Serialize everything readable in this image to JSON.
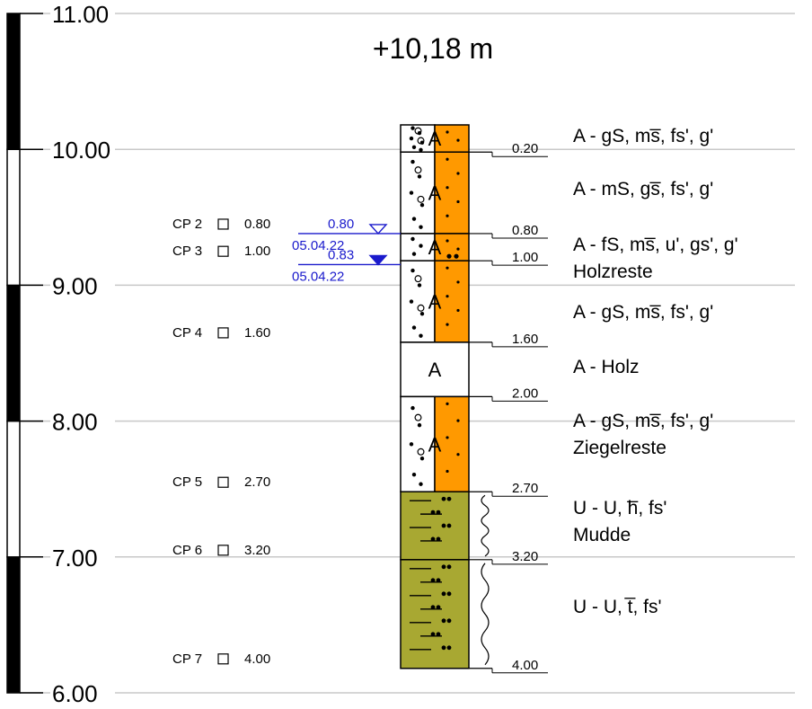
{
  "elevation": {
    "title": "+10,18 m",
    "top_elevation": 10.18,
    "range": [
      6.0,
      11.0
    ],
    "ticks": [
      {
        "value": 11.0,
        "label": "11.00"
      },
      {
        "value": 10.0,
        "label": "10.00"
      },
      {
        "value": 9.0,
        "label": "9.00"
      },
      {
        "value": 8.0,
        "label": "8.00"
      },
      {
        "value": 7.0,
        "label": "7.00"
      },
      {
        "value": 6.0,
        "label": "6.00"
      }
    ]
  },
  "layers": [
    {
      "from": 0.0,
      "to": 0.2,
      "symbol": "A",
      "type": "fill-gravel",
      "description": [
        "A - gS, ms̅, fs', g'"
      ],
      "bottom_label": "0.20"
    },
    {
      "from": 0.2,
      "to": 0.8,
      "symbol": "A",
      "type": "fill-gravel",
      "description": [
        "A - mS, gs̅, fs', g'"
      ],
      "bottom_label": "0.80"
    },
    {
      "from": 0.8,
      "to": 1.0,
      "symbol": "A",
      "type": "fill-silt",
      "description": [
        "A - fS, ms̅, u', gs', g'",
        "Holzreste"
      ],
      "bottom_label": "1.00"
    },
    {
      "from": 1.0,
      "to": 1.6,
      "symbol": "A",
      "type": "fill-gravel",
      "description": [
        "A - gS, ms̅, fs', g'"
      ],
      "bottom_label": "1.60"
    },
    {
      "from": 1.6,
      "to": 2.0,
      "symbol": "A",
      "type": "wood",
      "description": [
        "A - Holz"
      ],
      "bottom_label": "2.00"
    },
    {
      "from": 2.0,
      "to": 2.7,
      "symbol": "A",
      "type": "fill-gravel",
      "description": [
        "A - gS, ms̅, fs', g'",
        "Ziegelreste"
      ],
      "bottom_label": "2.70"
    },
    {
      "from": 2.7,
      "to": 3.2,
      "symbol": "",
      "type": "silt",
      "description": [
        "U - U, h̅, fs'",
        "Mudde"
      ],
      "bottom_label": "3.20"
    },
    {
      "from": 3.2,
      "to": 4.0,
      "symbol": "",
      "type": "silt",
      "description": [
        "U - U, t̅, fs'"
      ],
      "bottom_label": "4.00"
    }
  ],
  "samples": [
    {
      "name": "CP 2",
      "depth": 0.8,
      "label": "0.80"
    },
    {
      "name": "CP 3",
      "depth": 1.0,
      "label": "1.00"
    },
    {
      "name": "CP 4",
      "depth": 1.6,
      "label": "1.60"
    },
    {
      "name": "CP 5",
      "depth": 2.7,
      "label": "2.70"
    },
    {
      "name": "CP 6",
      "depth": 3.2,
      "label": "3.20"
    },
    {
      "name": "CP 7",
      "depth": 4.0,
      "label": "4.00"
    }
  ],
  "groundwater": [
    {
      "depth": 0.8,
      "label": "0.80",
      "date": "05.04.22",
      "filled": false
    },
    {
      "depth": 0.83,
      "label": "0.83",
      "date": "05.04.22",
      "filled": true
    }
  ],
  "colors": {
    "fill": "#ff9900",
    "silt": "#a8a832",
    "water": "#1a1acc",
    "grid": "#c8c8c8"
  }
}
